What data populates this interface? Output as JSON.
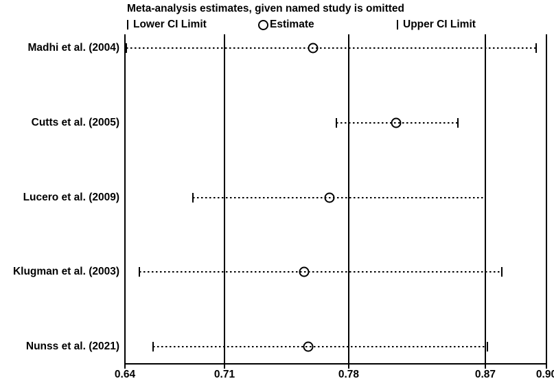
{
  "title": "Meta-analysis estimates, given named study is omitted",
  "legend": {
    "lower": "Lower CI Limit",
    "estimate": "Estimate",
    "upper": "Upper CI Limit"
  },
  "colors": {
    "foreground": "#000000",
    "background": "#ffffff"
  },
  "chart_data": {
    "type": "scatter",
    "subtype": "leave-one-out meta-analysis sensitivity (influence) plot",
    "title": "Meta-analysis estimates, given named study is omitted",
    "legend": [
      "Lower CI Limit",
      "Estimate",
      "Upper CI Limit"
    ],
    "xlim": [
      0.64,
      0.9
    ],
    "x_ticks": [
      0.64,
      0.71,
      0.78,
      0.87,
      0.9
    ],
    "x_tick_labels": [
      "0.64",
      "0.71",
      "0.78",
      "0.87",
      "0.90"
    ],
    "gridline_values": [
      0.71,
      0.78,
      0.87
    ],
    "grid": "vertical reference lines at overall lower CI, estimate, upper CI",
    "legend_position": "top",
    "studies": [
      {
        "label": "Madhi et al. (2004)",
        "lower": 0.641,
        "estimate": 0.76,
        "upper": 0.895
      },
      {
        "label": "Cutts et al. (2005)",
        "lower": 0.773,
        "estimate": 0.811,
        "upper": 0.852
      },
      {
        "label": "Lucero et al. (2009)",
        "lower": 0.688,
        "estimate": 0.769,
        "upper": 0.87
      },
      {
        "label": "Klugman et al. (2003)",
        "lower": 0.65,
        "estimate": 0.755,
        "upper": 0.878
      },
      {
        "label": "Nunss et al. (2021)",
        "lower": 0.66,
        "estimate": 0.757,
        "upper": 0.871
      }
    ]
  }
}
